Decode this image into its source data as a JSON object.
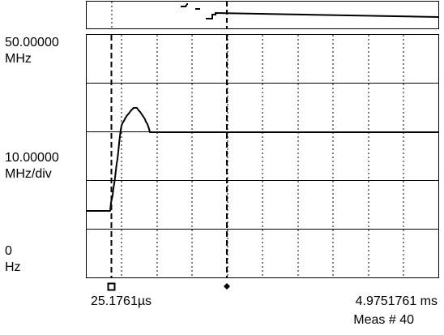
{
  "y_axis": {
    "top_value": "50.00000",
    "top_unit": "MHz",
    "scale_value": "10.00000",
    "scale_unit": "MHz/div",
    "bottom_value": "0",
    "bottom_unit": "Hz"
  },
  "x_axis": {
    "start_time": "25.1761µs",
    "end_time": "4.9751761 ms",
    "measurement": "Meas # 40"
  },
  "markers": {
    "start_marker_icon": "square-marker-icon",
    "trigger_marker_icon": "diamond-marker-icon"
  },
  "trace_color": "#000000",
  "background_color": "#ffffff"
}
